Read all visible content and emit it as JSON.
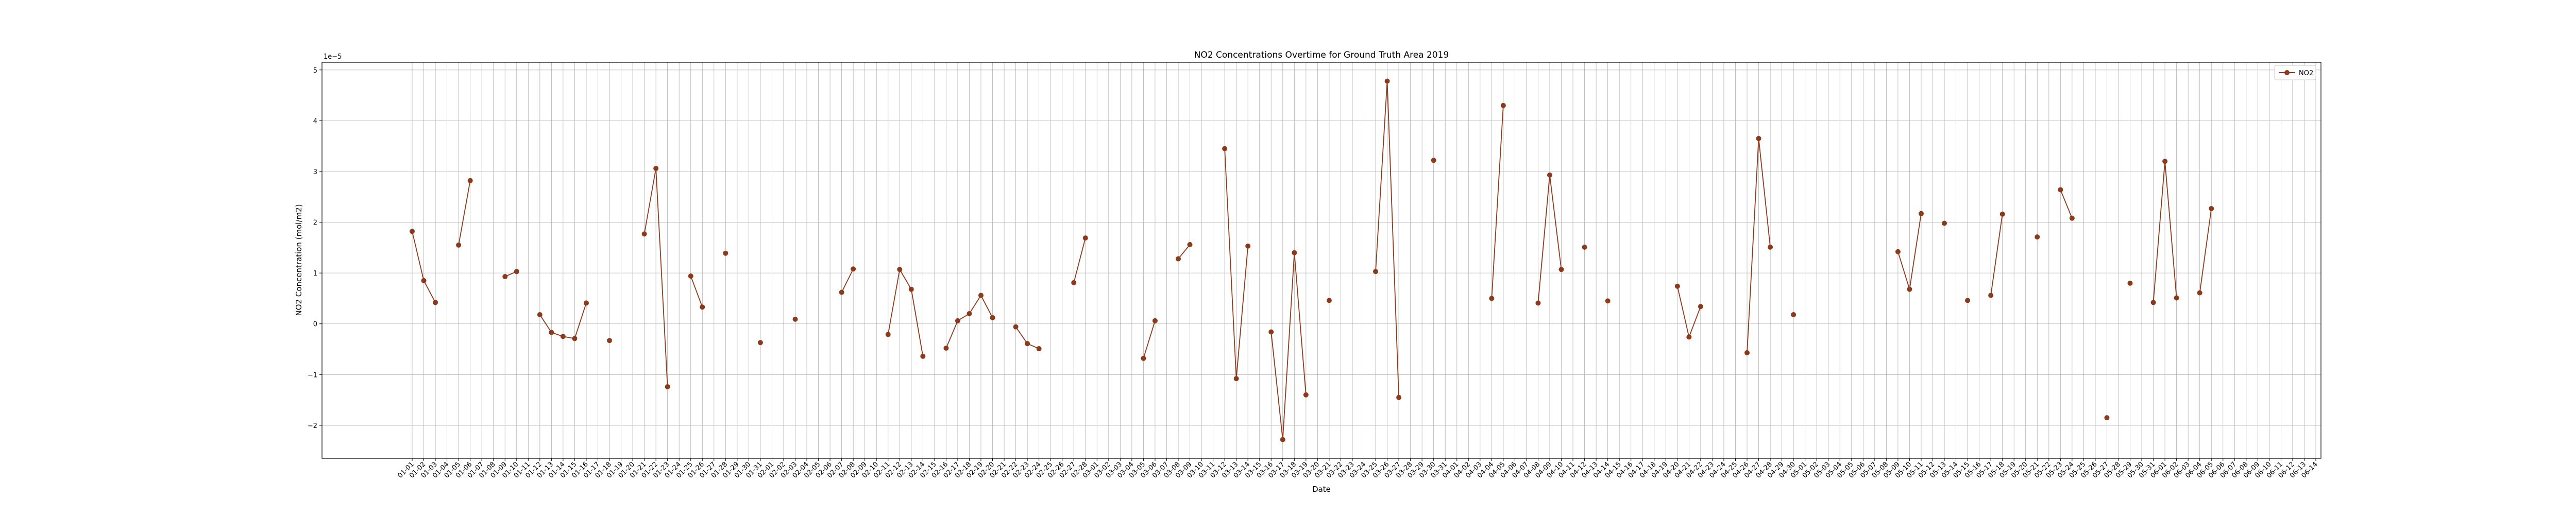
{
  "chart_data": {
    "type": "line",
    "title": "NO2 Concentrations Overtime for Ground Truth Area 2019",
    "xlabel": "Date",
    "ylabel": "NO2 Concentration (mol/m2)",
    "offset_label": "1e−5",
    "yticks": [
      -2,
      -1,
      0,
      1,
      2,
      3,
      4,
      5
    ],
    "ylim": [
      -2.65,
      5.15
    ],
    "grid": true,
    "legend_position": "top-right",
    "series": [
      {
        "name": "NO2",
        "color": "#8B3A1C",
        "marker": "circle",
        "points": [
          {
            "x": "01-01",
            "y": 1.82
          },
          {
            "x": "01-02",
            "y": 0.85
          },
          {
            "x": "01-03",
            "y": 0.42
          },
          {
            "x": "01-04",
            "y": null
          },
          {
            "x": "01-05",
            "y": 1.55
          },
          {
            "x": "01-06",
            "y": 2.82
          },
          {
            "x": "01-07",
            "y": null
          },
          {
            "x": "01-08",
            "y": null
          },
          {
            "x": "01-09",
            "y": 0.93
          },
          {
            "x": "01-10",
            "y": 1.03
          },
          {
            "x": "01-11",
            "y": null
          },
          {
            "x": "01-12",
            "y": 0.18
          },
          {
            "x": "01-13",
            "y": -0.17
          },
          {
            "x": "01-14",
            "y": -0.25
          },
          {
            "x": "01-15",
            "y": -0.29
          },
          {
            "x": "01-16",
            "y": 0.41
          },
          {
            "x": "01-17",
            "y": null
          },
          {
            "x": "01-18",
            "y": -0.33
          },
          {
            "x": "01-19",
            "y": null
          },
          {
            "x": "01-20",
            "y": null
          },
          {
            "x": "01-21",
            "y": 1.77
          },
          {
            "x": "01-22",
            "y": 3.06
          },
          {
            "x": "01-23",
            "y": -1.24
          },
          {
            "x": "01-24",
            "y": null
          },
          {
            "x": "01-25",
            "y": 0.94
          },
          {
            "x": "01-26",
            "y": 0.33
          },
          {
            "x": "01-27",
            "y": null
          },
          {
            "x": "01-28",
            "y": 1.39
          },
          {
            "x": "01-29",
            "y": null
          },
          {
            "x": "01-30",
            "y": null
          },
          {
            "x": "01-31",
            "y": -0.37
          },
          {
            "x": "02-01",
            "y": null
          },
          {
            "x": "02-02",
            "y": null
          },
          {
            "x": "02-03",
            "y": 0.09
          },
          {
            "x": "02-04",
            "y": null
          },
          {
            "x": "02-05",
            "y": null
          },
          {
            "x": "02-06",
            "y": null
          },
          {
            "x": "02-07",
            "y": 0.62
          },
          {
            "x": "02-08",
            "y": 1.08
          },
          {
            "x": "02-09",
            "y": null
          },
          {
            "x": "02-10",
            "y": null
          },
          {
            "x": "02-11",
            "y": -0.21
          },
          {
            "x": "02-12",
            "y": 1.07
          },
          {
            "x": "02-13",
            "y": 0.68
          },
          {
            "x": "02-14",
            "y": -0.64
          },
          {
            "x": "02-15",
            "y": null
          },
          {
            "x": "02-16",
            "y": -0.48
          },
          {
            "x": "02-17",
            "y": 0.06
          },
          {
            "x": "02-18",
            "y": 0.2
          },
          {
            "x": "02-19",
            "y": 0.56
          },
          {
            "x": "02-20",
            "y": 0.12
          },
          {
            "x": "02-21",
            "y": null
          },
          {
            "x": "02-22",
            "y": -0.06
          },
          {
            "x": "02-23",
            "y": -0.39
          },
          {
            "x": "02-24",
            "y": -0.49
          },
          {
            "x": "02-25",
            "y": null
          },
          {
            "x": "02-26",
            "y": null
          },
          {
            "x": "02-27",
            "y": 0.81
          },
          {
            "x": "02-28",
            "y": 1.69
          },
          {
            "x": "03-01",
            "y": null
          },
          {
            "x": "03-02",
            "y": null
          },
          {
            "x": "03-03",
            "y": null
          },
          {
            "x": "03-04",
            "y": null
          },
          {
            "x": "03-05",
            "y": -0.68
          },
          {
            "x": "03-06",
            "y": 0.06
          },
          {
            "x": "03-07",
            "y": null
          },
          {
            "x": "03-08",
            "y": 1.28
          },
          {
            "x": "03-09",
            "y": 1.56
          },
          {
            "x": "03-10",
            "y": null
          },
          {
            "x": "03-11",
            "y": null
          },
          {
            "x": "03-12",
            "y": 3.45
          },
          {
            "x": "03-13",
            "y": -1.08
          },
          {
            "x": "03-14",
            "y": 1.53
          },
          {
            "x": "03-15",
            "y": null
          },
          {
            "x": "03-16",
            "y": -0.16
          },
          {
            "x": "03-17",
            "y": -2.28
          },
          {
            "x": "03-18",
            "y": 1.4
          },
          {
            "x": "03-19",
            "y": -1.4
          },
          {
            "x": "03-20",
            "y": null
          },
          {
            "x": "03-21",
            "y": 0.46
          },
          {
            "x": "03-22",
            "y": null
          },
          {
            "x": "03-23",
            "y": null
          },
          {
            "x": "03-24",
            "y": null
          },
          {
            "x": "03-25",
            "y": 1.03
          },
          {
            "x": "03-26",
            "y": 4.78
          },
          {
            "x": "03-27",
            "y": -1.45
          },
          {
            "x": "03-28",
            "y": null
          },
          {
            "x": "03-29",
            "y": null
          },
          {
            "x": "03-30",
            "y": 3.22
          },
          {
            "x": "03-31",
            "y": null
          },
          {
            "x": "04-01",
            "y": null
          },
          {
            "x": "04-02",
            "y": null
          },
          {
            "x": "04-03",
            "y": null
          },
          {
            "x": "04-04",
            "y": 0.5
          },
          {
            "x": "04-05",
            "y": 4.3
          },
          {
            "x": "04-06",
            "y": null
          },
          {
            "x": "04-07",
            "y": null
          },
          {
            "x": "04-08",
            "y": 0.41
          },
          {
            "x": "04-09",
            "y": 2.93
          },
          {
            "x": "04-10",
            "y": 1.07
          },
          {
            "x": "04-11",
            "y": null
          },
          {
            "x": "04-12",
            "y": 1.51
          },
          {
            "x": "04-13",
            "y": null
          },
          {
            "x": "04-14",
            "y": 0.45
          },
          {
            "x": "04-15",
            "y": null
          },
          {
            "x": "04-16",
            "y": null
          },
          {
            "x": "04-17",
            "y": null
          },
          {
            "x": "04-18",
            "y": null
          },
          {
            "x": "04-19",
            "y": null
          },
          {
            "x": "04-20",
            "y": 0.74
          },
          {
            "x": "04-21",
            "y": -0.26
          },
          {
            "x": "04-22",
            "y": 0.34
          },
          {
            "x": "04-23",
            "y": null
          },
          {
            "x": "04-24",
            "y": null
          },
          {
            "x": "04-25",
            "y": null
          },
          {
            "x": "04-26",
            "y": -0.57
          },
          {
            "x": "04-27",
            "y": 3.65
          },
          {
            "x": "04-28",
            "y": 1.51
          },
          {
            "x": "04-29",
            "y": null
          },
          {
            "x": "04-30",
            "y": 0.18
          },
          {
            "x": "05-01",
            "y": null
          },
          {
            "x": "05-02",
            "y": null
          },
          {
            "x": "05-03",
            "y": null
          },
          {
            "x": "05-04",
            "y": null
          },
          {
            "x": "05-05",
            "y": null
          },
          {
            "x": "05-06",
            "y": null
          },
          {
            "x": "05-07",
            "y": null
          },
          {
            "x": "05-08",
            "y": null
          },
          {
            "x": "05-09",
            "y": 1.42
          },
          {
            "x": "05-10",
            "y": 0.68
          },
          {
            "x": "05-11",
            "y": 2.17
          },
          {
            "x": "05-12",
            "y": null
          },
          {
            "x": "05-13",
            "y": 1.98
          },
          {
            "x": "05-14",
            "y": null
          },
          {
            "x": "05-15",
            "y": 0.46
          },
          {
            "x": "05-16",
            "y": null
          },
          {
            "x": "05-17",
            "y": 0.56
          },
          {
            "x": "05-18",
            "y": 2.16
          },
          {
            "x": "05-19",
            "y": null
          },
          {
            "x": "05-20",
            "y": null
          },
          {
            "x": "05-21",
            "y": 1.71
          },
          {
            "x": "05-22",
            "y": null
          },
          {
            "x": "05-23",
            "y": 2.64
          },
          {
            "x": "05-24",
            "y": 2.08
          },
          {
            "x": "05-25",
            "y": null
          },
          {
            "x": "05-26",
            "y": null
          },
          {
            "x": "05-27",
            "y": -1.85
          },
          {
            "x": "05-28",
            "y": null
          },
          {
            "x": "05-29",
            "y": 0.8
          },
          {
            "x": "05-30",
            "y": null
          },
          {
            "x": "05-31",
            "y": 0.42
          },
          {
            "x": "06-01",
            "y": 3.2
          },
          {
            "x": "06-02",
            "y": 0.51
          },
          {
            "x": "06-03",
            "y": null
          },
          {
            "x": "06-04",
            "y": 0.61
          },
          {
            "x": "06-05",
            "y": 2.27
          },
          {
            "x": "06-06",
            "y": null
          },
          {
            "x": "06-07",
            "y": null
          },
          {
            "x": "06-08",
            "y": null
          },
          {
            "x": "06-09",
            "y": null
          },
          {
            "x": "06-10",
            "y": null
          },
          {
            "x": "06-11",
            "y": null
          },
          {
            "x": "06-12",
            "y": null
          },
          {
            "x": "06-13",
            "y": null
          },
          {
            "x": "06-14",
            "y": null
          }
        ]
      }
    ]
  }
}
